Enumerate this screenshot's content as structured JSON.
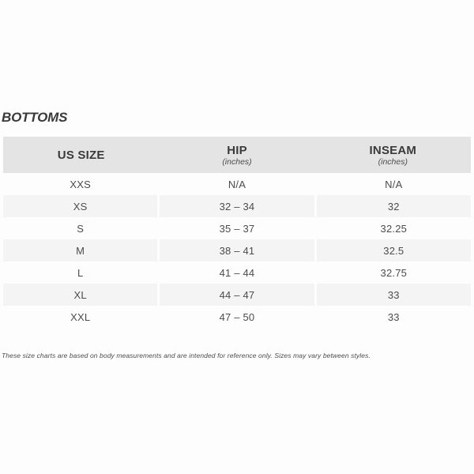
{
  "page": {
    "title": "BOTTOMS",
    "footnote": "These size charts are based on body measurements and are intended for reference only. Sizes may vary between styles."
  },
  "table": {
    "columns": [
      {
        "label": "US SIZE",
        "sublabel": ""
      },
      {
        "label": "HIP",
        "sublabel": "(inches)"
      },
      {
        "label": "INSEAM",
        "sublabel": "(inches)"
      }
    ],
    "rows": [
      {
        "size": "XXS",
        "hip": "N/A",
        "inseam": "N/A"
      },
      {
        "size": "XS",
        "hip": "32 – 34",
        "inseam": "32"
      },
      {
        "size": "S",
        "hip": "35 – 37",
        "inseam": "32.25"
      },
      {
        "size": "M",
        "hip": "38 – 41",
        "inseam": "32.5"
      },
      {
        "size": "L",
        "hip": "41 – 44",
        "inseam": "32.75"
      },
      {
        "size": "XL",
        "hip": "44 – 47",
        "inseam": "33"
      },
      {
        "size": "XXL",
        "hip": "47 – 50",
        "inseam": "33"
      }
    ]
  },
  "chart_data": {
    "type": "table",
    "title": "BOTTOMS",
    "columns": [
      "US SIZE",
      "HIP (inches)",
      "INSEAM (inches)"
    ],
    "rows": [
      [
        "XXS",
        "N/A",
        "N/A"
      ],
      [
        "XS",
        "32 – 34",
        "32"
      ],
      [
        "S",
        "35 – 37",
        "32.25"
      ],
      [
        "M",
        "38 – 41",
        "32.5"
      ],
      [
        "L",
        "41 – 44",
        "32.75"
      ],
      [
        "XL",
        "44 – 47",
        "33"
      ],
      [
        "XXL",
        "47 – 50",
        "33"
      ]
    ]
  },
  "colors": {
    "header_bg": "#e4e4e4",
    "stripe_bg": "#f4f4f4",
    "text": "#3d3d3d",
    "background": "#fdfdfd"
  }
}
